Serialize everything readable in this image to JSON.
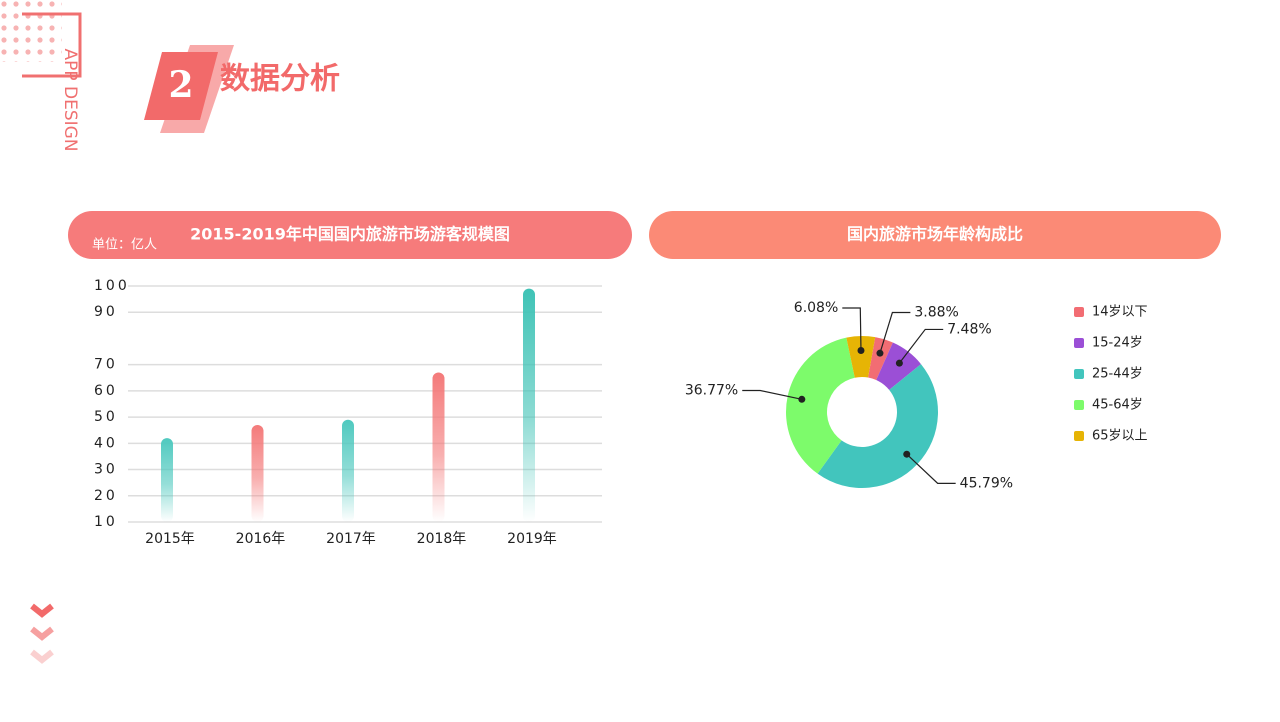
{
  "header": {
    "side": "APP DESIGN",
    "badge": "2",
    "title": "数据分析"
  },
  "chart_data": [
    {
      "type": "bar",
      "title": "2015-2019年中国国内旅游市场游客规模图",
      "unit": "单位：亿人",
      "categories": [
        "2015年",
        "2016年",
        "2017年",
        "2018年",
        "2019年"
      ],
      "values": [
        42,
        47,
        49,
        67,
        99
      ],
      "colors": [
        "#4fc9bf",
        "#f47a7a",
        "#4fc9bf",
        "#f47a7a",
        "#3fc3b6"
      ],
      "ylim": [
        10,
        100
      ],
      "yticks": [
        100,
        90,
        70,
        60,
        50,
        40,
        30,
        20,
        10
      ],
      "grid": true
    },
    {
      "type": "pie",
      "title": "国内旅游市场年龄构成比",
      "categories": [
        "14岁以下",
        "15-24岁",
        "25-44岁",
        "45-64岁",
        "65岁以上"
      ],
      "values": [
        3.88,
        7.48,
        45.79,
        36.77,
        6.08
      ],
      "value_labels": [
        "3.88%",
        "7.48%",
        "45.79%",
        "36.77%",
        "6.08%"
      ],
      "colors": [
        "#f26d73",
        "#9b4fd6",
        "#42c5bd",
        "#7dfb6b",
        "#e6b405"
      ]
    }
  ]
}
